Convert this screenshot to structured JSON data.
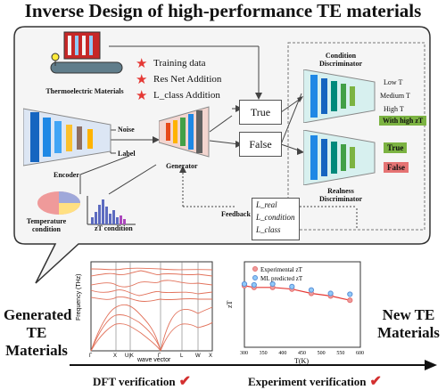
{
  "title": "Inverse Design of high-performance TE materials",
  "pipeline": {
    "source_label": "Thermoelectric Materials",
    "encoder_label": "Encoder",
    "noise_label": "Noise",
    "label_label": "Label",
    "generator_label": "Generator",
    "true_label": "True",
    "false_label": "False",
    "temperature_label": "Temperature condition",
    "zt_condition_label": "zT condition",
    "feedback_label": "Feedback",
    "loss_terms": [
      "L_real",
      "L_condition",
      "L_class"
    ],
    "condition_disc_label": "Condition Discriminator",
    "condition_outputs": [
      "Low T",
      "Medium T",
      "High T"
    ],
    "with_high_zt": "With high zT",
    "realness_disc_label": "Realness Discriminator",
    "realness_true": "True",
    "realness_false": "False"
  },
  "legend": [
    "Training data",
    "Res Net Addition",
    "L_class Addition"
  ],
  "bottom": {
    "left_label": "Generated TE Materials",
    "right_label": "New TE Materials",
    "dft_label": "DFT verification",
    "experiment_label": "Experiment verification"
  },
  "band_plot": {
    "ylabel": "Frequency (THz)",
    "xlabel": "wave vector",
    "kpoints": [
      "Γ",
      "X",
      "U|K",
      "Γ",
      "L",
      "W",
      "X"
    ]
  },
  "chart_data": {
    "type": "scatter",
    "xlabel": "T(K)",
    "ylabel": "zT",
    "xlim": [
      300,
      600
    ],
    "xticks": [
      300,
      350,
      400,
      450,
      500,
      550,
      600
    ],
    "ylim": [
      0,
      1.0
    ],
    "series": [
      {
        "name": "Experimental zT",
        "x": [
          300,
          325,
          373,
          423,
          473,
          523,
          573
        ],
        "y": [
          0.72,
          0.7,
          0.7,
          0.68,
          0.63,
          0.6,
          0.55
        ]
      },
      {
        "name": "ML predicted zT",
        "x": [
          300,
          325,
          373,
          423,
          473,
          523,
          573
        ],
        "y": [
          0.74,
          0.73,
          0.74,
          0.71,
          0.67,
          0.63,
          0.62
        ]
      }
    ]
  }
}
